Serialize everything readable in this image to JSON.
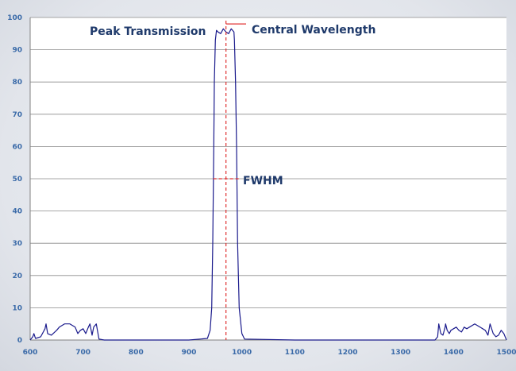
{
  "chart_data": {
    "type": "line",
    "title": "",
    "xlabel": "",
    "ylabel": "",
    "xlim": [
      600,
      1500
    ],
    "ylim": [
      0,
      100
    ],
    "x_ticks": [
      600,
      700,
      800,
      900,
      1000,
      1100,
      1200,
      1300,
      1400,
      1500
    ],
    "y_ticks": [
      0,
      10,
      20,
      30,
      40,
      50,
      60,
      70,
      80,
      90,
      100
    ],
    "grid": "horizontal",
    "colors": {
      "line": "#1a1a8c",
      "annotation": "#e03030",
      "text": "#1f3a6b",
      "ticks": "#3a6aa8"
    },
    "series": [
      {
        "x": [
          600,
          605,
          607,
          610,
          620,
          628,
          630,
          633,
          640,
          650,
          655,
          665,
          675,
          685,
          690,
          695,
          700,
          705,
          710,
          713,
          717,
          720,
          725,
          727,
          730,
          740,
          800,
          900,
          935,
          940,
          943,
          945,
          947,
          948,
          950,
          952,
          955,
          960,
          965,
          970,
          975,
          980,
          985,
          986,
          988,
          990,
          992,
          995,
          1000,
          1005,
          1100,
          1200,
          1300,
          1365,
          1370,
          1372,
          1376,
          1380,
          1384,
          1385,
          1388,
          1392,
          1395,
          1400,
          1405,
          1410,
          1415,
          1420,
          1425,
          1430,
          1440,
          1450,
          1460,
          1465,
          1469,
          1475,
          1480,
          1485,
          1490,
          1495,
          1500
        ],
        "y": [
          0,
          1,
          2,
          0.5,
          1,
          3.5,
          5,
          2,
          1.5,
          3,
          4,
          5,
          5,
          4,
          2,
          3,
          3.5,
          2,
          4,
          5,
          1.5,
          4,
          5,
          3,
          0.3,
          0,
          0,
          0,
          0.5,
          3,
          10,
          30,
          60,
          80,
          93,
          96,
          95.5,
          95,
          96.5,
          95.5,
          95,
          96.5,
          95.5,
          93,
          80,
          60,
          30,
          10,
          2,
          0.3,
          0,
          0,
          0,
          0,
          1,
          5,
          2,
          1.5,
          4,
          5,
          3,
          2,
          3,
          3.5,
          4,
          3,
          2.5,
          4,
          3.5,
          4,
          5,
          4,
          3,
          1.5,
          5,
          2,
          1,
          1.5,
          3,
          2,
          0
        ]
      }
    ],
    "annotations": {
      "peak_transmission": "Peak Transmission",
      "central_wavelength": "Central Wavelength",
      "fwhm": "FWHM"
    },
    "central_wavelength_x": 970,
    "fwhm_y": 50
  }
}
